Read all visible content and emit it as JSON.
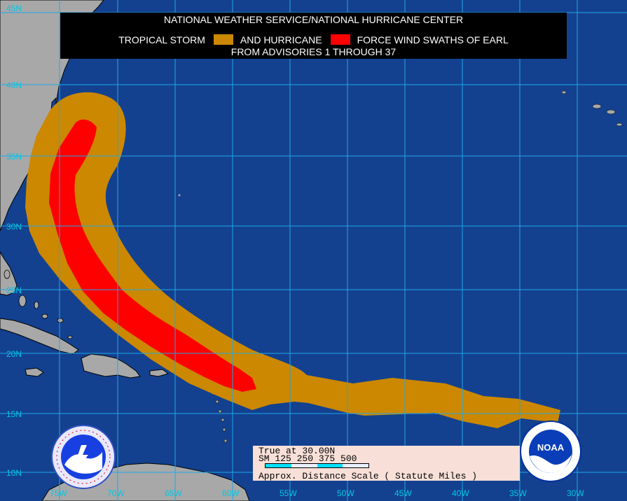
{
  "title": {
    "line1": "NATIONAL WEATHER SERVICE/NATIONAL HURRICANE CENTER",
    "legend_ts_label": "TROPICAL STORM",
    "legend_hu_label": "AND HURRICANE",
    "legend_suffix": "FORCE WIND SWATHS OF EARL",
    "line3": "FROM ADVISORIES 1 THROUGH 37"
  },
  "legend": {
    "tropical_storm_color": "#cc8800",
    "hurricane_color": "#ff0000"
  },
  "latitude_labels": [
    "45N",
    "40N",
    "35N",
    "30N",
    "25N",
    "20N",
    "15N",
    "10N"
  ],
  "longitude_labels": [
    "75W",
    "70W",
    "65W",
    "60W",
    "55W",
    "50W",
    "45W",
    "40W",
    "35W",
    "30W"
  ],
  "scale": {
    "line1": "True at 30.00N",
    "line2": "SM 125 250 375 500",
    "caption": "Approx. Distance Scale ( Statute Miles )"
  },
  "colors": {
    "ocean": "#13418f",
    "land": "#a8a8a8",
    "grid": "#1fa8e8",
    "labels": "#00c8e6"
  },
  "logos": {
    "left": {
      "name": "NWS logo",
      "text": "NATIONAL WEATHER SERVICE"
    },
    "right": {
      "name": "NOAA logo",
      "text": "NOAA"
    }
  }
}
